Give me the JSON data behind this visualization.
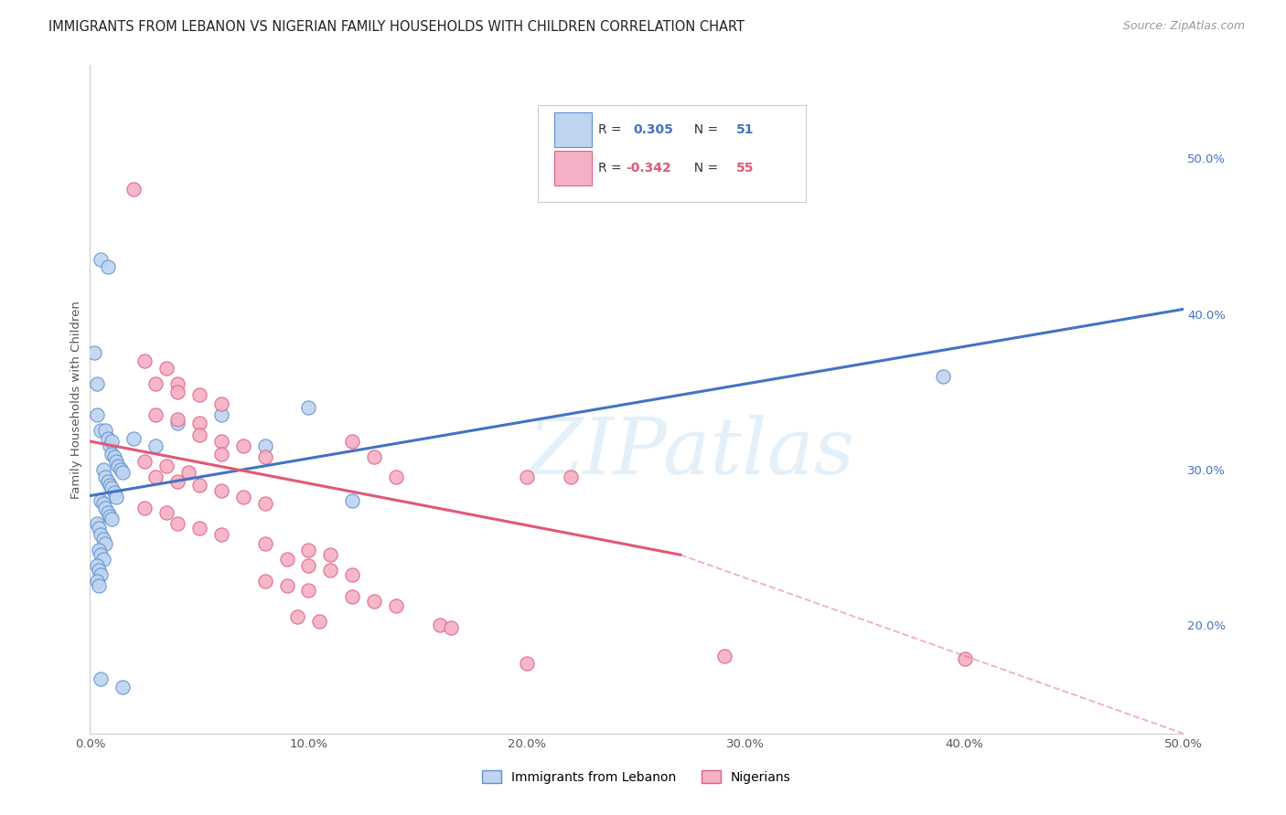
{
  "title": "IMMIGRANTS FROM LEBANON VS NIGERIAN FAMILY HOUSEHOLDS WITH CHILDREN CORRELATION CHART",
  "source": "Source: ZipAtlas.com",
  "ylabel": "Family Households with Children",
  "xlim": [
    0.0,
    0.5
  ],
  "ylim": [
    0.13,
    0.56
  ],
  "xticks": [
    0.0,
    0.1,
    0.2,
    0.3,
    0.4,
    0.5
  ],
  "yticks_right": [
    0.2,
    0.3,
    0.4,
    0.5
  ],
  "ytick_labels_right": [
    "20.0%",
    "30.0%",
    "40.0%",
    "50.0%"
  ],
  "xtick_labels": [
    "0.0%",
    "10.0%",
    "20.0%",
    "30.0%",
    "40.0%",
    "50.0%"
  ],
  "legend_entries": [
    {
      "label": "Immigrants from Lebanon",
      "R": "0.305",
      "N": "51",
      "face_color": "#c5d9f1",
      "edge_color": "#5b9bd5"
    },
    {
      "label": "Nigerians",
      "R": "-0.342",
      "N": "55",
      "face_color": "#f4b8c8",
      "edge_color": "#e06080"
    }
  ],
  "blue_scatter": [
    [
      0.002,
      0.375
    ],
    [
      0.003,
      0.355
    ],
    [
      0.005,
      0.435
    ],
    [
      0.008,
      0.43
    ],
    [
      0.003,
      0.335
    ],
    [
      0.005,
      0.325
    ],
    [
      0.007,
      0.325
    ],
    [
      0.008,
      0.32
    ],
    [
      0.009,
      0.315
    ],
    [
      0.01,
      0.318
    ],
    [
      0.01,
      0.31
    ],
    [
      0.011,
      0.308
    ],
    [
      0.012,
      0.305
    ],
    [
      0.013,
      0.302
    ],
    [
      0.014,
      0.3
    ],
    [
      0.015,
      0.298
    ],
    [
      0.006,
      0.3
    ],
    [
      0.007,
      0.295
    ],
    [
      0.008,
      0.292
    ],
    [
      0.009,
      0.29
    ],
    [
      0.01,
      0.288
    ],
    [
      0.011,
      0.285
    ],
    [
      0.012,
      0.282
    ],
    [
      0.005,
      0.28
    ],
    [
      0.006,
      0.278
    ],
    [
      0.007,
      0.275
    ],
    [
      0.008,
      0.272
    ],
    [
      0.009,
      0.27
    ],
    [
      0.01,
      0.268
    ],
    [
      0.003,
      0.265
    ],
    [
      0.004,
      0.262
    ],
    [
      0.005,
      0.258
    ],
    [
      0.006,
      0.255
    ],
    [
      0.007,
      0.252
    ],
    [
      0.004,
      0.248
    ],
    [
      0.005,
      0.245
    ],
    [
      0.006,
      0.242
    ],
    [
      0.003,
      0.238
    ],
    [
      0.004,
      0.235
    ],
    [
      0.005,
      0.232
    ],
    [
      0.003,
      0.228
    ],
    [
      0.004,
      0.225
    ],
    [
      0.02,
      0.32
    ],
    [
      0.03,
      0.315
    ],
    [
      0.04,
      0.33
    ],
    [
      0.06,
      0.335
    ],
    [
      0.08,
      0.315
    ],
    [
      0.1,
      0.34
    ],
    [
      0.12,
      0.28
    ],
    [
      0.39,
      0.36
    ],
    [
      0.005,
      0.165
    ],
    [
      0.015,
      0.16
    ]
  ],
  "pink_scatter": [
    [
      0.02,
      0.48
    ],
    [
      0.025,
      0.37
    ],
    [
      0.035,
      0.365
    ],
    [
      0.03,
      0.355
    ],
    [
      0.04,
      0.355
    ],
    [
      0.04,
      0.35
    ],
    [
      0.05,
      0.348
    ],
    [
      0.06,
      0.342
    ],
    [
      0.03,
      0.335
    ],
    [
      0.04,
      0.332
    ],
    [
      0.05,
      0.33
    ],
    [
      0.05,
      0.322
    ],
    [
      0.06,
      0.318
    ],
    [
      0.07,
      0.315
    ],
    [
      0.06,
      0.31
    ],
    [
      0.08,
      0.308
    ],
    [
      0.025,
      0.305
    ],
    [
      0.035,
      0.302
    ],
    [
      0.045,
      0.298
    ],
    [
      0.03,
      0.295
    ],
    [
      0.04,
      0.292
    ],
    [
      0.05,
      0.29
    ],
    [
      0.06,
      0.286
    ],
    [
      0.07,
      0.282
    ],
    [
      0.08,
      0.278
    ],
    [
      0.025,
      0.275
    ],
    [
      0.035,
      0.272
    ],
    [
      0.04,
      0.265
    ],
    [
      0.05,
      0.262
    ],
    [
      0.06,
      0.258
    ],
    [
      0.08,
      0.252
    ],
    [
      0.1,
      0.248
    ],
    [
      0.11,
      0.245
    ],
    [
      0.12,
      0.318
    ],
    [
      0.13,
      0.308
    ],
    [
      0.14,
      0.295
    ],
    [
      0.09,
      0.242
    ],
    [
      0.1,
      0.238
    ],
    [
      0.11,
      0.235
    ],
    [
      0.12,
      0.232
    ],
    [
      0.08,
      0.228
    ],
    [
      0.09,
      0.225
    ],
    [
      0.1,
      0.222
    ],
    [
      0.12,
      0.218
    ],
    [
      0.13,
      0.215
    ],
    [
      0.14,
      0.212
    ],
    [
      0.095,
      0.205
    ],
    [
      0.105,
      0.202
    ],
    [
      0.16,
      0.2
    ],
    [
      0.165,
      0.198
    ],
    [
      0.2,
      0.295
    ],
    [
      0.22,
      0.295
    ],
    [
      0.2,
      0.175
    ],
    [
      0.29,
      0.18
    ],
    [
      0.4,
      0.178
    ]
  ],
  "blue_line": {
    "x": [
      0.0,
      0.5
    ],
    "y": [
      0.283,
      0.403
    ]
  },
  "pink_line_solid": {
    "x": [
      0.0,
      0.27
    ],
    "y": [
      0.318,
      0.245
    ]
  },
  "pink_line_dashed": {
    "x": [
      0.27,
      0.5
    ],
    "y": [
      0.245,
      0.13
    ]
  },
  "watermark": "ZIPatlas",
  "background_color": "#ffffff",
  "grid_color": "#d8d8d8",
  "blue_line_color": "#4472c4",
  "pink_line_color": "#e05878",
  "blue_dot_face": "#bed4f0",
  "blue_dot_edge": "#6090d0",
  "pink_dot_face": "#f4b0c4",
  "pink_dot_edge": "#e06080",
  "title_fontsize": 10.5,
  "source_fontsize": 9,
  "tick_fontsize": 9.5,
  "dot_size": 120
}
